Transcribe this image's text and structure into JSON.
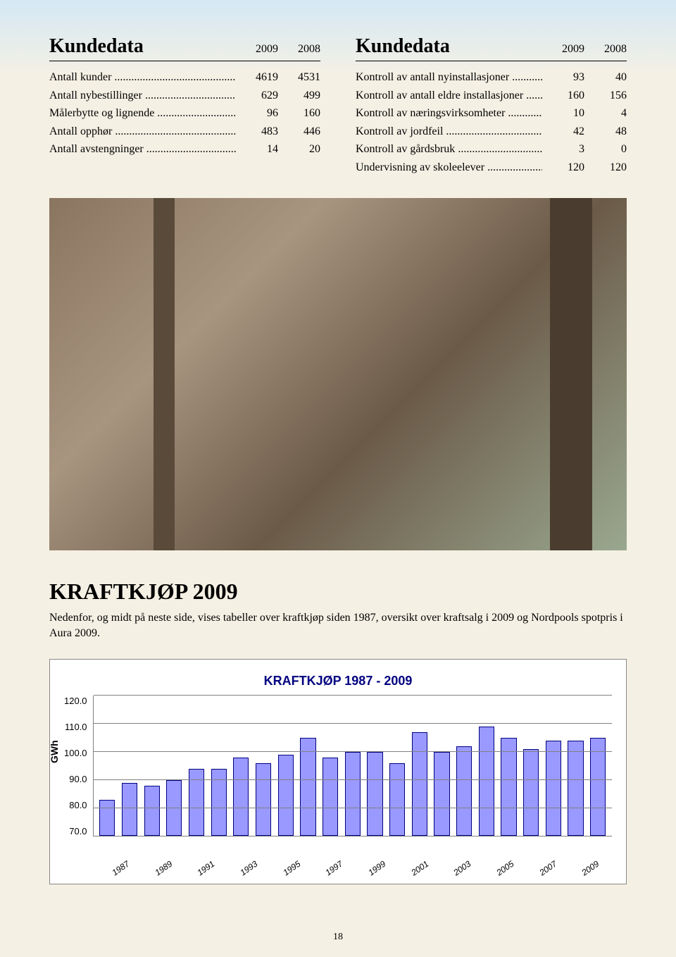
{
  "tables": {
    "left": {
      "title": "Kundedata",
      "year1": "2009",
      "year2": "2008",
      "rows": [
        {
          "label": "Antall kunder",
          "v1": "4619",
          "v2": "4531"
        },
        {
          "label": "Antall nybestillinger",
          "v1": "629",
          "v2": "499"
        },
        {
          "label": "Målerbytte og lignende",
          "v1": "96",
          "v2": "160"
        },
        {
          "label": "Antall opphør",
          "v1": "483",
          "v2": "446"
        },
        {
          "label": "Antall avstengninger",
          "v1": "14",
          "v2": "20"
        }
      ]
    },
    "right": {
      "title": "Kundedata",
      "year1": "2009",
      "year2": "2008",
      "rows": [
        {
          "label": "Kontroll av antall nyinstallasjoner",
          "v1": "93",
          "v2": "40"
        },
        {
          "label": "Kontroll av antall eldre installasjoner",
          "v1": "160",
          "v2": "156"
        },
        {
          "label": "Kontroll av næringsvirksomheter",
          "v1": "10",
          "v2": "4"
        },
        {
          "label": "Kontroll av jordfeil",
          "v1": "42",
          "v2": "48"
        },
        {
          "label": "Kontroll av gårdsbruk",
          "v1": "3",
          "v2": "0"
        },
        {
          "label": "Undervisning av skoleelever",
          "v1": "120",
          "v2": "120"
        }
      ]
    }
  },
  "section": {
    "title": "KRAFTKJØP 2009",
    "text": "Nedenfor, og midt på neste side, vises tabeller over kraftkjøp siden 1987, oversikt over kraftsalg i 2009 og Nordpools spotpris i Aura 2009."
  },
  "chart": {
    "title": "KRAFTKJØP 1987 - 2009",
    "ylabel": "GWh",
    "ymin": 70,
    "ymax": 120,
    "ystep": 10,
    "yticks": [
      "120.0",
      "110.0",
      "100.0",
      "90.0",
      "80.0",
      "70.0"
    ],
    "bar_color": "#9999ff",
    "bar_border": "#000080",
    "grid_color": "#808080",
    "title_color": "#000080",
    "background": "#ffffff",
    "years": [
      1987,
      1988,
      1989,
      1990,
      1991,
      1992,
      1993,
      1994,
      1995,
      1996,
      1997,
      1998,
      1999,
      2000,
      2001,
      2002,
      2003,
      2004,
      2005,
      2006,
      2007,
      2008,
      2009
    ],
    "values": [
      83,
      89,
      88,
      90,
      94,
      94,
      98,
      96,
      99,
      105,
      98,
      100,
      100,
      96,
      107,
      100,
      102,
      109,
      105,
      101,
      104,
      104,
      105
    ],
    "xticks": [
      "1987",
      "1989",
      "1991",
      "1993",
      "1995",
      "1997",
      "1999",
      "2001",
      "2003",
      "2005",
      "2007",
      "2009"
    ]
  },
  "page_number": "18"
}
